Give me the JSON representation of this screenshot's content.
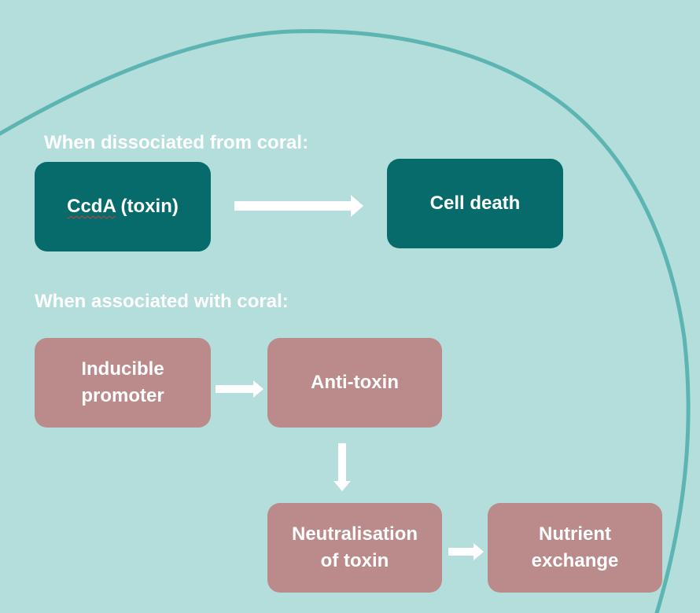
{
  "colors": {
    "background": "#b4dedb",
    "curve": "#5cb5b2",
    "teal_box": "#076a6b",
    "rose_box": "#bb8a8a",
    "text": "#ffffff",
    "arrow": "#ffffff"
  },
  "dissociated": {
    "heading": "When dissociated from coral:",
    "toxin_box": {
      "word": "CcdA",
      "rest": " (toxin)"
    },
    "result_box": "Cell death"
  },
  "associated": {
    "heading": "When associated with coral:",
    "promoter_box": {
      "line1": "Inducible",
      "line2": "promoter"
    },
    "antitoxin_box": "Anti-toxin",
    "neutralisation_box": {
      "line1": "Neutralisation",
      "line2": "of toxin"
    },
    "nutrient_box": {
      "line1": "Nutrient",
      "line2": "exchange"
    }
  }
}
